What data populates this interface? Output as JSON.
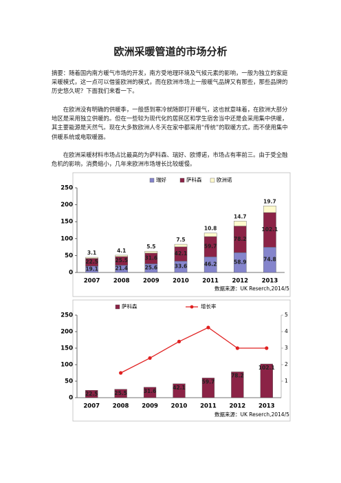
{
  "title": "欧洲采暖管道的市场分析",
  "paragraphs": [
    "摘要：随着国内南方暖气市场的开发，南方受地理环境及气候元素的影响，一般为独立的家庭采暖模式，这一点可以借鉴欧洲的模式，而在欧洲市场上一般暖气品牌又有那些，那些品牌的历史悠久呢？下面我们来看一下。",
    "在欧洲没有明确的供暖季，一般感到寒冷就随即打开暖气，这也就意味着，在欧洲大部分地区是采用独立供暖的。但在一些较为现代化的居民区和学生宿舍当中还是会采用集中供暖，其主要能源是天然气。现在大多数欧洲人冬天在家中都采用“传统”的取暖方式，而不使用集中供暖系统或电取暖器。",
    "在欧洲采暖材料市场占比最高的为萨科森、瑞好、欧博诺，市场占有率前三。由于受全融危机的影响，消费缩小，几年来欧洲市场增长比较缓慢。"
  ],
  "chart_data": [
    {
      "type": "bar",
      "stacked": true,
      "source": "数据来源：UK Reserch,2014/5",
      "categories": [
        "2007",
        "2008",
        "2009",
        "2010",
        "2011",
        "2012",
        "2013"
      ],
      "series": [
        {
          "name": "瑞好",
          "color": "#8585cc",
          "values": [
            19.1,
            21.4,
            25.6,
            33.6,
            46.2,
            58.9,
            74.8
          ]
        },
        {
          "name": "萨科森",
          "color": "#8b2346",
          "values": [
            22.5,
            25.5,
            31.6,
            42.1,
            59.7,
            78.2,
            102.1
          ]
        },
        {
          "name": "欧洲诺",
          "color": "#fffacd",
          "values": [
            3.1,
            4.1,
            5.5,
            7.5,
            10.8,
            14.7,
            19.7
          ]
        }
      ],
      "ylim": [
        0,
        250
      ],
      "yticks": [
        0,
        50,
        100,
        150,
        200,
        250
      ],
      "grid": false
    },
    {
      "type": "bar",
      "stacked": false,
      "source": "数据来源：UK Reserch,2014/5",
      "categories": [
        "2007",
        "2008",
        "2009",
        "2010",
        "2011",
        "2012",
        "2013"
      ],
      "series": [
        {
          "name": "萨科森",
          "color": "#8b2346",
          "values": [
            22.5,
            25.5,
            31.6,
            42.1,
            59.7,
            78.2,
            102.1
          ]
        },
        {
          "name": "增长率",
          "type": "line",
          "axis": "y2",
          "color": "#e02020",
          "values": [
            null,
            1.5,
            2.4,
            3.4,
            4.25,
            3.0,
            3.0
          ]
        }
      ],
      "ylim": [
        0,
        250
      ],
      "yticks": [
        0,
        50,
        100,
        150,
        200,
        250
      ],
      "y2lim": [
        0,
        5
      ],
      "y2ticks": [
        1,
        2,
        3,
        4,
        5
      ],
      "grid": false
    }
  ]
}
